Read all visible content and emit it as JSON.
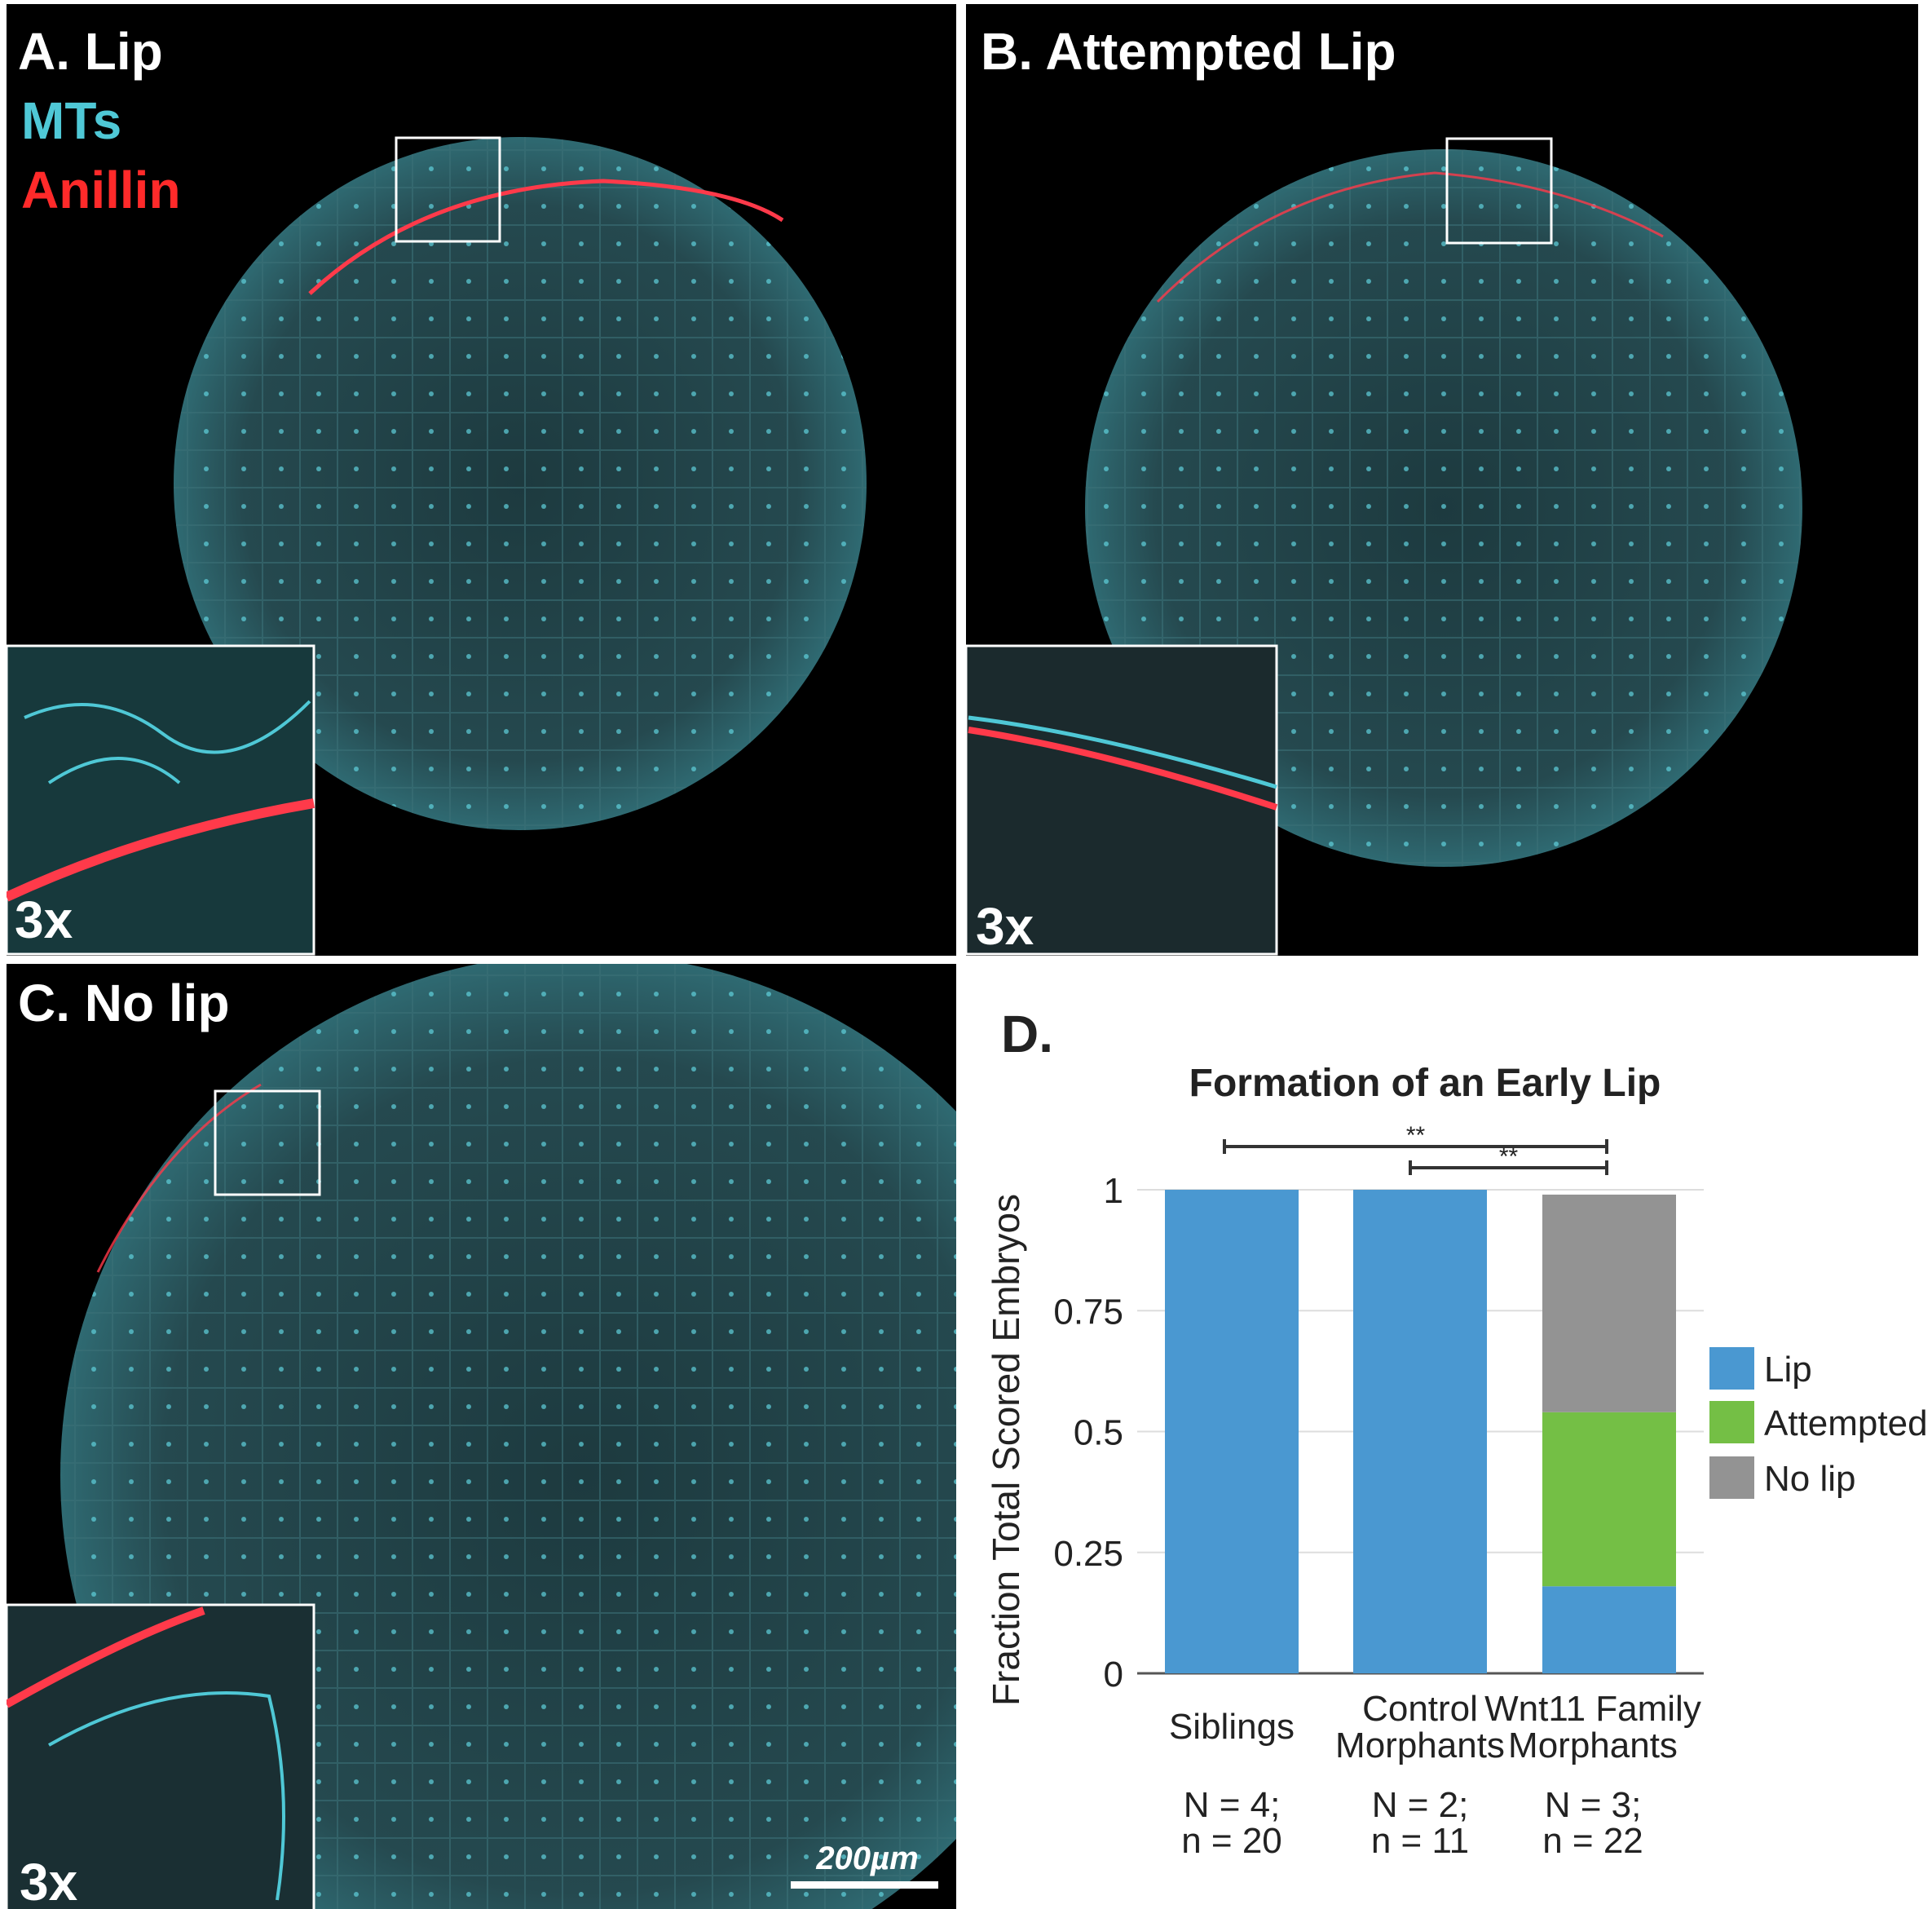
{
  "panels": {
    "a": {
      "label": "A. Lip",
      "channel_1": "MTs",
      "channel_2": "Anillin",
      "inset_label": "3x"
    },
    "b": {
      "label": "B. Attempted Lip",
      "inset_label": "3x"
    },
    "c": {
      "label": "C. No lip",
      "inset_label": "3x",
      "scale_bar": "200µm"
    },
    "d": {
      "label": "D."
    }
  },
  "colors": {
    "mts": "#4fc8d6",
    "anillin": "#ff2a2a",
    "lip": "#4a98d1",
    "attempted": "#74bf45",
    "no_lip": "#939393"
  },
  "chart_data": {
    "type": "bar",
    "stacked": true,
    "title": "Formation of an Early Lip",
    "ylabel": "Fraction Total Scored Embryos",
    "xlabel": "",
    "ylim": [
      0,
      1
    ],
    "yticks": [
      "0",
      "0.25",
      "0.5",
      "0.75",
      "1"
    ],
    "grid": true,
    "legend_position": "right",
    "categories": [
      {
        "line1": "Siblings",
        "line2": "",
        "n1": "N = 4;",
        "n2": "n = 20"
      },
      {
        "line1": "Control",
        "line2": "Morphants",
        "n1": "N = 2;",
        "n2": "n = 11"
      },
      {
        "line1": "Wnt11 Family",
        "line2": "Morphants",
        "n1": "N = 3;",
        "n2": "n = 22"
      }
    ],
    "series": [
      {
        "name": "Lip",
        "values": [
          1,
          1,
          0.18
        ]
      },
      {
        "name": "Attempted",
        "values": [
          0,
          0,
          0.36
        ]
      },
      {
        "name": "No lip",
        "values": [
          0,
          0,
          0.45
        ]
      }
    ],
    "significance": [
      {
        "from": 0,
        "to": 2,
        "label": "**"
      },
      {
        "from": 1,
        "to": 2,
        "label": "**"
      }
    ]
  }
}
